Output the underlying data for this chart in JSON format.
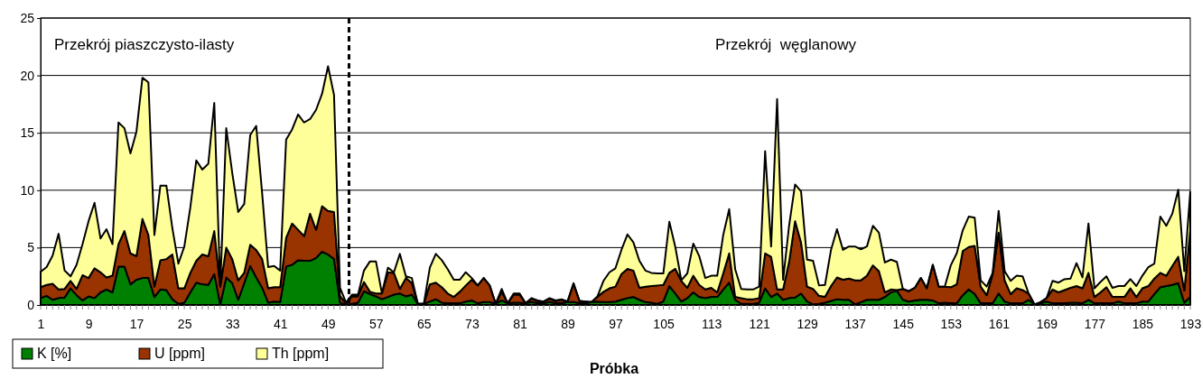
{
  "chart_data": {
    "type": "area",
    "stacked": true,
    "xlabel": "Próbka",
    "legend": "bottom left",
    "grid": "y",
    "line_style": "solid",
    "annotations": [
      "Przekrój piaszczysto-ilasty",
      "Przekrój  węglanowy"
    ],
    "ref_lines": [
      {
        "axis": "x",
        "value": 52.5,
        "line_style": "dashed",
        "color": "#000000"
      }
    ],
    "xlim": [
      1,
      193
    ],
    "xticks": [
      1,
      9,
      17,
      25,
      33,
      41,
      49,
      57,
      65,
      73,
      81,
      89,
      97,
      105,
      113,
      121,
      129,
      137,
      145,
      153,
      161,
      169,
      177,
      185,
      193
    ],
    "ylim": [
      0,
      25
    ],
    "yticks": [
      0,
      5,
      10,
      15,
      20,
      25
    ],
    "x": [
      1,
      2,
      3,
      4,
      5,
      6,
      7,
      8,
      9,
      10,
      11,
      12,
      13,
      14,
      15,
      16,
      17,
      18,
      19,
      20,
      21,
      22,
      23,
      24,
      25,
      26,
      27,
      28,
      29,
      30,
      31,
      32,
      33,
      34,
      35,
      36,
      37,
      38,
      39,
      40,
      41,
      42,
      43,
      44,
      45,
      46,
      47,
      48,
      49,
      50,
      51,
      52,
      53,
      54,
      55,
      56,
      57,
      58,
      59,
      60,
      61,
      62,
      63,
      64,
      65,
      66,
      67,
      68,
      69,
      70,
      71,
      72,
      73,
      74,
      75,
      76,
      77,
      78,
      79,
      80,
      81,
      82,
      83,
      84,
      85,
      86,
      87,
      88,
      89,
      90,
      91,
      92,
      93,
      94,
      95,
      96,
      97,
      98,
      99,
      100,
      101,
      102,
      103,
      104,
      105,
      106,
      107,
      108,
      109,
      110,
      111,
      112,
      113,
      114,
      115,
      116,
      117,
      118,
      119,
      120,
      121,
      122,
      123,
      124,
      125,
      126,
      127,
      128,
      129,
      130,
      131,
      132,
      133,
      134,
      135,
      136,
      137,
      138,
      139,
      140,
      141,
      142,
      143,
      144,
      145,
      146,
      147,
      148,
      149,
      150,
      151,
      152,
      153,
      154,
      155,
      156,
      157,
      158,
      159,
      160,
      161,
      162,
      163,
      164,
      165,
      166,
      167,
      168,
      169,
      170,
      171,
      172,
      173,
      174,
      175,
      176,
      177,
      178,
      179,
      180,
      181,
      182,
      183,
      184,
      185,
      186,
      187,
      188,
      189,
      190,
      191,
      192,
      193
    ],
    "series": [
      {
        "name": "K [%]",
        "color": "#008000",
        "values": [
          0.6,
          0.8,
          0.45,
          0.6,
          0.65,
          1.45,
          0.85,
          0.4,
          0.75,
          0.6,
          1.1,
          1.35,
          1.1,
          3.35,
          3.35,
          1.8,
          2.2,
          2.35,
          2.35,
          0.7,
          1.35,
          1.3,
          0.5,
          0.1,
          0.2,
          1.1,
          1.95,
          1.8,
          1.75,
          2.7,
          0.05,
          2.4,
          1.9,
          0.45,
          1.9,
          3.4,
          2.4,
          1.5,
          0.2,
          0.3,
          0.25,
          3.35,
          3.5,
          3.9,
          3.85,
          3.85,
          4.1,
          4.65,
          4.4,
          4.0,
          0.2,
          0,
          0.1,
          0.2,
          1.2,
          0.95,
          0.75,
          0.5,
          0.7,
          0.9,
          1.0,
          0.75,
          0.9,
          0.1,
          0.1,
          0.3,
          0.5,
          0.2,
          0.15,
          0.15,
          0.15,
          0.3,
          0.4,
          0.15,
          0.25,
          0.25,
          0.1,
          0.4,
          0.15,
          0.2,
          0.2,
          0.15,
          0.25,
          0.15,
          0.15,
          0.25,
          0.15,
          0.15,
          0.25,
          0.25,
          0.15,
          0.15,
          0.25,
          0.3,
          0.25,
          0.25,
          0.3,
          0.45,
          0.6,
          0.7,
          0.45,
          0.25,
          0.2,
          0.1,
          0.3,
          1.65,
          1.0,
          0.3,
          0.6,
          1.1,
          0.7,
          0.6,
          0.7,
          0.7,
          1.35,
          1.95,
          0.45,
          0.1,
          0.1,
          0.1,
          0.2,
          1.45,
          0.7,
          1.0,
          0.45,
          0.6,
          0.65,
          1.0,
          0.3,
          0.05,
          0.1,
          0.2,
          0.35,
          0.5,
          0.45,
          0.45,
          0.05,
          0.25,
          0.45,
          0.45,
          0.45,
          0.7,
          1.1,
          1.25,
          0.45,
          0.3,
          0.4,
          0.45,
          0.45,
          0.4,
          0.15,
          0.2,
          0.15,
          0.15,
          0.85,
          1.35,
          0.95,
          0.15,
          0.15,
          0.15,
          1.0,
          0.3,
          0.15,
          0.15,
          0.15,
          0.45,
          0.05,
          0.15,
          0.3,
          0.15,
          0.15,
          0.15,
          0.2,
          0.2,
          0.15,
          0.45,
          0.15,
          0.15,
          0.15,
          0.15,
          0.3,
          0.15,
          0.15,
          0.15,
          0.3,
          0.3,
          0.95,
          1.55,
          1.65,
          1.75,
          1.9,
          0.2,
          0.7
        ]
      },
      {
        "name": "U [ppm]",
        "color": "#993300",
        "values": [
          0.95,
          0.95,
          1.4,
          0.75,
          0.75,
          0.65,
          0.55,
          2.2,
          1.6,
          2.6,
          1.75,
          1.05,
          1.45,
          1.95,
          3.1,
          2.7,
          2.05,
          5.15,
          3.75,
          0.9,
          2.55,
          2.7,
          3.9,
          1.35,
          1.25,
          1.7,
          1.9,
          2.6,
          2.5,
          3.75,
          1.55,
          2.6,
          2.1,
          1.7,
          0.9,
          1.85,
          2.4,
          2.5,
          1.25,
          1.25,
          1.3,
          2.5,
          3.6,
          2.65,
          2.15,
          4.1,
          2.45,
          3.95,
          3.8,
          4.1,
          0.6,
          0.1,
          0.65,
          0.55,
          0.8,
          0.2,
          0.25,
          0.5,
          2.15,
          1.9,
          0.4,
          1.6,
          1.0,
          0,
          0,
          1.5,
          1.45,
          1.35,
          0.85,
          0.55,
          1.0,
          1.4,
          1.8,
          1.55,
          2.1,
          1.45,
          0,
          0.75,
          0,
          0.7,
          0.7,
          0,
          0.3,
          0.2,
          0.15,
          0.3,
          0.2,
          0.3,
          0.05,
          1.6,
          0.2,
          0.15,
          0,
          0.4,
          0.9,
          1.2,
          1.3,
          2.25,
          2.55,
          2.3,
          1.05,
          1.35,
          1.45,
          1.6,
          1.45,
          1.15,
          2.15,
          1.8,
          0.9,
          1.45,
          1.05,
          0.75,
          0.8,
          0.4,
          1.4,
          2.55,
          0.25,
          0.5,
          0.4,
          0.4,
          0.4,
          3.05,
          3.5,
          0.35,
          0.9,
          3.15,
          6.65,
          4.45,
          1.3,
          1.35,
          0.7,
          0.5,
          1.3,
          1.9,
          1.75,
          1.85,
          2.1,
          1.9,
          2.1,
          3.0,
          2.5,
          0.4,
          0.25,
          0.05,
          0.95,
          0.9,
          1.1,
          1.9,
          1.0,
          3.1,
          1.45,
          1.4,
          1.4,
          1.65,
          3.85,
          3.7,
          4.2,
          1.45,
          0.7,
          2.55,
          5.3,
          1.85,
          0.8,
          1.3,
          1.15,
          0.55,
          0,
          0.1,
          0.3,
          1.2,
          0.95,
          1.15,
          1.3,
          1.45,
          1.3,
          2.35,
          0.55,
          0.95,
          1.4,
          0.55,
          0.4,
          0.55,
          1.3,
          0.55,
          1.15,
          1.35,
          1.35,
          1.25,
          0.9,
          1.65,
          2.3,
          1.05,
          5.8
        ]
      },
      {
        "name": "Th [ppm]",
        "color": "#ffff99",
        "values": [
          1.35,
          1.55,
          2.45,
          4.85,
          1.6,
          0.4,
          2.1,
          2.7,
          4.95,
          5.7,
          2.95,
          4.2,
          2.75,
          10.6,
          8.95,
          8.7,
          10.85,
          12.3,
          13.3,
          4.5,
          6.5,
          6.4,
          2.3,
          2.15,
          3.65,
          5.7,
          8.75,
          7.4,
          8.05,
          11.15,
          0,
          10.4,
          7.5,
          5.95,
          6.0,
          9.55,
          10.8,
          5.7,
          1.85,
          1.85,
          1.45,
          8.55,
          8.2,
          10.05,
          9.9,
          8.25,
          10.45,
          9.8,
          12.6,
          10.2,
          0.7,
          0.1,
          0.15,
          0.15,
          1.0,
          2.65,
          2.8,
          0,
          0.4,
          0.05,
          3.05,
          0.15,
          0.45,
          0,
          0,
          1.45,
          2.5,
          2.35,
          2.1,
          1.5,
          1.05,
          1.15,
          0.15,
          0,
          0,
          0,
          0,
          0.25,
          0,
          0.1,
          0.1,
          0,
          0.05,
          0.05,
          0,
          0.05,
          0.05,
          0.05,
          0,
          0.05,
          0,
          0,
          0,
          0.05,
          0.95,
          1.4,
          1.6,
          2.1,
          3.0,
          2.45,
          2.35,
          1.4,
          1.15,
          1.05,
          1.0,
          4.45,
          1.9,
          0.05,
          1.25,
          2.8,
          2.5,
          1.0,
          1.05,
          1.45,
          3.35,
          3.85,
          2.4,
          0.8,
          0.85,
          0.85,
          1.0,
          8.9,
          0.9,
          16.6,
          0.85,
          3.15,
          3.2,
          4.45,
          2.35,
          2.45,
          0.9,
          1.05,
          3.15,
          4.2,
          2.6,
          2.8,
          2.95,
          2.7,
          2.55,
          3.45,
          3.35,
          2.6,
          2.6,
          2.45,
          0,
          0,
          0,
          0,
          0,
          0,
          0,
          0,
          1.9,
          2.7,
          1.8,
          2.65,
          2.45,
          0.55,
          0.75,
          0.1,
          1.9,
          0.8,
          1.15,
          1.1,
          1.2,
          0,
          0,
          0,
          0,
          0.75,
          0.85,
          0.95,
          0.8,
          2.0,
          0.95,
          4.3,
          0.75,
          0.9,
          0.95,
          0.8,
          0.95,
          0.95,
          0.8,
          0.95,
          1.1,
          1.65,
          1.3,
          4.9,
          4.35,
          4.55,
          5.85,
          1.7,
          3.35
        ]
      }
    ]
  }
}
